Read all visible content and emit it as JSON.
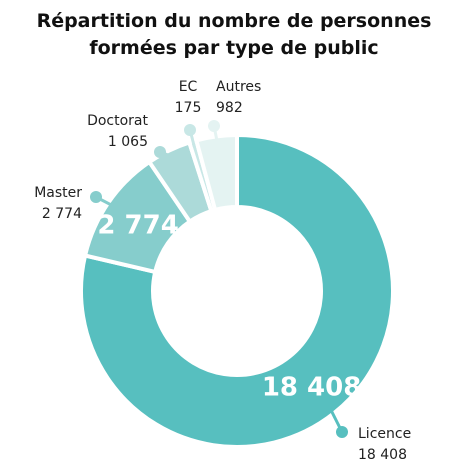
{
  "chart_data": {
    "type": "donut",
    "title": "Répartition du nombre de personnes formées par type de public",
    "categories": [
      "Licence",
      "Master",
      "Doctorat",
      "EC",
      "Autres"
    ],
    "values": [
      18408,
      2774,
      1065,
      175,
      982
    ],
    "value_labels": [
      "18 408",
      "2 774",
      "1 065",
      "175",
      "982"
    ],
    "colors": [
      "#57bfbf",
      "#86cdcc",
      "#acdad9",
      "#c8e7e6",
      "#e4f3f2"
    ]
  }
}
